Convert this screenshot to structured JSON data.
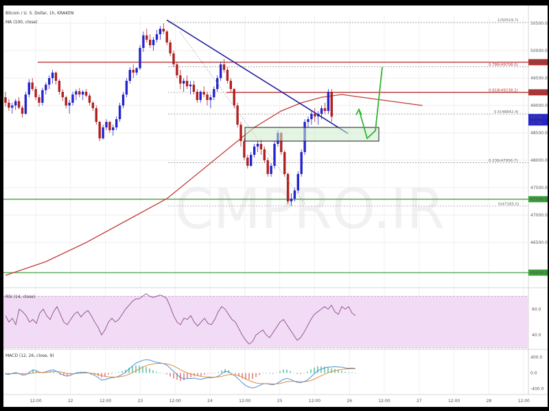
{
  "header": {
    "symbol_line": "Bitcoin / U. S. Dollar, 1h, KRAKEN",
    "ma_label": "MA (100, close)",
    "rsi_label": "RSI (14, close)",
    "macd_label": "MACD (12, 26, close, 9)"
  },
  "watermark": "CMPRO.IR",
  "colors": {
    "up": "#2424cc",
    "down": "#b02020",
    "ma": "#c43a3a",
    "trendline": "#1e1ea0",
    "resistance": "#b83232",
    "support": "#3aa03a",
    "arrow": "#2db52d",
    "rsi_band": "#f2dcf5",
    "rsi_line": "#8a4a8a",
    "macd_line": "#4a90d9",
    "signal_line": "#e08a3a"
  },
  "chart_data": [
    {
      "type": "candlestick",
      "title": "",
      "xlabel": "",
      "ylabel": "",
      "y_ticks": [
        "50500.0",
        "50000.0",
        "49500.0",
        "49000.0",
        "48500.0",
        "48000.0",
        "47500.0",
        "47000.0",
        "46500.0"
      ],
      "ylim": [
        45700,
        50650
      ],
      "x_ticks": [
        "12:00",
        "22",
        "12:00",
        "23",
        "12:00",
        "24",
        "12:00",
        "25",
        "12:00",
        "26",
        "12:00",
        "27",
        "12:00",
        "28",
        "12:00"
      ],
      "price_tags": [
        {
          "text": "49799.5",
          "y": 49790,
          "color": "#b83232"
        },
        {
          "text": "49244.8",
          "y": 49240,
          "color": "#b83232"
        },
        {
          "text": "48796.5",
          "y": 48790,
          "color": "#2424cc"
        },
        {
          "text": "25:56",
          "y": 48690,
          "color": "#2424cc"
        },
        {
          "text": "47299.1",
          "y": 47290,
          "color": "#3aa03a"
        },
        {
          "text": "45958.1",
          "y": 45950,
          "color": "#3aa03a"
        }
      ],
      "fib_levels": [
        {
          "label": "1(50519.7)",
          "y": 50519.7
        },
        {
          "label": "0.786(49708.0)",
          "y": 49708
        },
        {
          "label": "0.618(49238.2)",
          "y": 49238.2
        },
        {
          "label": "0.5(48842.4)",
          "y": 48842.4
        },
        {
          "label": "0.236(47956.7)",
          "y": 47956.7
        },
        {
          "label": "0(47165.0)",
          "y": 47165
        }
      ],
      "horizontal_levels": [
        {
          "name": "resistance-upper",
          "y": 49790,
          "color": "#b83232"
        },
        {
          "name": "resistance-lower",
          "y": 49240,
          "color": "#b83232"
        },
        {
          "name": "support-upper",
          "y": 47290,
          "color": "#3aa03a"
        },
        {
          "name": "support-lower",
          "y": 45950,
          "color": "#3aa03a"
        }
      ],
      "ohlc": [
        [
          49150,
          49250,
          48980,
          49050
        ],
        [
          49050,
          49120,
          48900,
          48960
        ],
        [
          48960,
          49050,
          48850,
          49000
        ],
        [
          49000,
          49120,
          48920,
          49080
        ],
        [
          49080,
          49150,
          48930,
          48960
        ],
        [
          48960,
          49000,
          48780,
          48850
        ],
        [
          48850,
          49250,
          48830,
          49200
        ],
        [
          49200,
          49480,
          49150,
          49420
        ],
        [
          49420,
          49500,
          49260,
          49300
        ],
        [
          49300,
          49350,
          49100,
          49150
        ],
        [
          49150,
          49200,
          48980,
          49050
        ],
        [
          49050,
          49320,
          49000,
          49280
        ],
        [
          49280,
          49420,
          49200,
          49380
        ],
        [
          49380,
          49550,
          49300,
          49500
        ],
        [
          49500,
          49650,
          49400,
          49600
        ],
        [
          49600,
          49620,
          49380,
          49450
        ],
        [
          49450,
          49480,
          49200,
          49250
        ],
        [
          49250,
          49300,
          49080,
          49150
        ],
        [
          49150,
          49180,
          48950,
          49000
        ],
        [
          49000,
          49100,
          48850,
          49050
        ],
        [
          49050,
          49250,
          49000,
          49200
        ],
        [
          49200,
          49300,
          49100,
          49260
        ],
        [
          49260,
          49320,
          49150,
          49200
        ],
        [
          49200,
          49280,
          49100,
          49250
        ],
        [
          49250,
          49300,
          49150,
          49180
        ],
        [
          49180,
          49220,
          49000,
          49050
        ],
        [
          49050,
          49080,
          48900,
          48950
        ],
        [
          48950,
          49000,
          48650,
          48700
        ],
        [
          48700,
          48720,
          48350,
          48400
        ],
        [
          48400,
          48650,
          48380,
          48600
        ],
        [
          48600,
          48750,
          48550,
          48700
        ],
        [
          48700,
          48720,
          48500,
          48550
        ],
        [
          48550,
          48650,
          48450,
          48600
        ],
        [
          48600,
          48800,
          48550,
          48750
        ],
        [
          48750,
          49050,
          48700,
          49000
        ],
        [
          49000,
          49250,
          48950,
          49200
        ],
        [
          49200,
          49500,
          49150,
          49450
        ],
        [
          49450,
          49700,
          49400,
          49650
        ],
        [
          49650,
          49750,
          49500,
          49600
        ],
        [
          49600,
          49700,
          49550,
          49680
        ],
        [
          49680,
          50100,
          49650,
          50050
        ],
        [
          50050,
          50350,
          49980,
          50280
        ],
        [
          50280,
          50400,
          50150,
          50200
        ],
        [
          50200,
          50300,
          50050,
          50100
        ],
        [
          50100,
          50250,
          50000,
          50200
        ],
        [
          50200,
          50380,
          50150,
          50300
        ],
        [
          50300,
          50450,
          50200,
          50400
        ],
        [
          50400,
          50500,
          50300,
          50350
        ],
        [
          50350,
          50380,
          50100,
          50150
        ],
        [
          50150,
          50200,
          49900,
          49950
        ],
        [
          49950,
          50000,
          49700,
          49750
        ],
        [
          49750,
          49800,
          49500,
          49550
        ],
        [
          49550,
          49650,
          49300,
          49400
        ],
        [
          49400,
          49500,
          49250,
          49450
        ],
        [
          49450,
          49550,
          49300,
          49350
        ],
        [
          49350,
          49450,
          49200,
          49380
        ],
        [
          49380,
          49450,
          49200,
          49250
        ],
        [
          49250,
          49300,
          49050,
          49100
        ],
        [
          49100,
          49280,
          49050,
          49250
        ],
        [
          49250,
          49350,
          49150,
          49200
        ],
        [
          49200,
          49250,
          49000,
          49100
        ],
        [
          49100,
          49200,
          48950,
          49150
        ],
        [
          49150,
          49350,
          49100,
          49300
        ],
        [
          49300,
          49550,
          49250,
          49500
        ],
        [
          49500,
          49800,
          49450,
          49750
        ],
        [
          49750,
          49850,
          49600,
          49650
        ],
        [
          49650,
          49700,
          49400,
          49450
        ],
        [
          49450,
          49500,
          49250,
          49300
        ],
        [
          49300,
          49320,
          48950,
          49000
        ],
        [
          49000,
          49050,
          48600,
          48650
        ],
        [
          48650,
          48700,
          48250,
          48350
        ],
        [
          48350,
          48400,
          48000,
          48050
        ],
        [
          48050,
          48100,
          47850,
          47900
        ],
        [
          47900,
          48150,
          47880,
          48100
        ],
        [
          48100,
          48300,
          48050,
          48250
        ],
        [
          48250,
          48350,
          48150,
          48300
        ],
        [
          48300,
          48380,
          48100,
          48200
        ],
        [
          48200,
          48250,
          47950,
          48000
        ],
        [
          48000,
          48050,
          47700,
          47750
        ],
        [
          47750,
          47950,
          47700,
          47900
        ],
        [
          47900,
          48350,
          47850,
          48300
        ],
        [
          48300,
          48550,
          48250,
          48500
        ],
        [
          48500,
          48520,
          48100,
          48150
        ],
        [
          48150,
          48180,
          47700,
          47750
        ],
        [
          47750,
          47780,
          47200,
          47250
        ],
        [
          47250,
          47400,
          47165,
          47300
        ],
        [
          47300,
          47500,
          47250,
          47450
        ],
        [
          47450,
          47800,
          47400,
          47750
        ],
        [
          47750,
          48200,
          47700,
          48150
        ],
        [
          48150,
          48750,
          48100,
          48700
        ],
        [
          48700,
          48800,
          48600,
          48750
        ],
        [
          48750,
          48900,
          48650,
          48850
        ],
        [
          48850,
          48950,
          48700,
          48800
        ],
        [
          48800,
          48900,
          48650,
          48850
        ],
        [
          48850,
          49000,
          48750,
          48950
        ],
        [
          48950,
          49050,
          48850,
          48900
        ],
        [
          48900,
          49300,
          48850,
          49250
        ],
        [
          49250,
          49300,
          48700,
          48796.5
        ]
      ],
      "ma100": [
        [
          0,
          45900
        ],
        [
          12,
          46150
        ],
        [
          24,
          46500
        ],
        [
          36,
          46900
        ],
        [
          48,
          47300
        ],
        [
          58,
          47800
        ],
        [
          66,
          48200
        ],
        [
          74,
          48600
        ],
        [
          82,
          48900
        ],
        [
          88,
          49050
        ],
        [
          94,
          49150
        ],
        [
          100,
          49200
        ],
        [
          106,
          49150
        ],
        [
          112,
          49100
        ],
        [
          118,
          49050
        ],
        [
          124,
          49000
        ]
      ]
    },
    {
      "type": "line",
      "name": "rsi",
      "title": "",
      "y_ticks": [
        "60.0",
        "40.0"
      ],
      "ylim": [
        30,
        75
      ],
      "band": [
        30,
        70
      ],
      "values": [
        55,
        50,
        53,
        48,
        60,
        58,
        55,
        50,
        52,
        49,
        57,
        60,
        55,
        52,
        58,
        62,
        56,
        50,
        48,
        52,
        56,
        58,
        54,
        57,
        59,
        55,
        50,
        46,
        40,
        44,
        50,
        53,
        50,
        52,
        56,
        60,
        63,
        66,
        68,
        68,
        70,
        72,
        70,
        69,
        70,
        71,
        70,
        68,
        62,
        55,
        50,
        48,
        53,
        52,
        55,
        50,
        47,
        50,
        53,
        49,
        48,
        52,
        58,
        62,
        60,
        56,
        52,
        50,
        45,
        40,
        36,
        33,
        35,
        40,
        42,
        44,
        40,
        38,
        42,
        46,
        50,
        52,
        48,
        44,
        40,
        36,
        38,
        42,
        47,
        52,
        56,
        58,
        60,
        62,
        60,
        63,
        58,
        56,
        62,
        60,
        62,
        57,
        55
      ]
    },
    {
      "type": "line",
      "name": "macd",
      "title": "",
      "y_ticks": [
        "400.0",
        "0.0",
        "-400.0"
      ],
      "ylim": [
        -550,
        550
      ],
      "macd": [
        -30,
        -40,
        -10,
        10,
        -20,
        -60,
        -40,
        20,
        80,
        60,
        20,
        10,
        40,
        70,
        80,
        40,
        -20,
        -60,
        -80,
        -60,
        -20,
        10,
        20,
        20,
        10,
        -30,
        -60,
        -120,
        -180,
        -170,
        -140,
        -120,
        -110,
        -80,
        -40,
        20,
        100,
        180,
        250,
        290,
        320,
        340,
        330,
        300,
        270,
        260,
        240,
        200,
        120,
        40,
        -40,
        -120,
        -150,
        -140,
        -140,
        -130,
        -150,
        -160,
        -140,
        -120,
        -120,
        -110,
        -80,
        -20,
        40,
        30,
        -30,
        -80,
        -160,
        -250,
        -320,
        -360,
        -380,
        -360,
        -320,
        -280,
        -270,
        -290,
        -300,
        -270,
        -220,
        -160,
        -140,
        -160,
        -200,
        -240,
        -250,
        -220,
        -180,
        -100,
        -20,
        60,
        100,
        130,
        150,
        150,
        160,
        150,
        150,
        130,
        120,
        125,
        115
      ],
      "signal": [
        -10,
        -15,
        -18,
        -15,
        -15,
        -22,
        -26,
        -18,
        -2,
        10,
        12,
        12,
        18,
        28,
        38,
        38,
        26,
        8,
        -10,
        -20,
        -20,
        -14,
        -8,
        -2,
        0,
        -6,
        -17,
        -37,
        -66,
        -87,
        -98,
        -102,
        -104,
        -99,
        -87,
        -66,
        -33,
        10,
        58,
        104,
        147,
        186,
        215,
        232,
        240,
        244,
        243,
        234,
        211,
        177,
        134,
        83,
        36,
        1,
        -27,
        -48,
        -68,
        -87,
        -98,
        -102,
        -106,
        -107,
        -102,
        -86,
        -61,
        -43,
        -40,
        -48,
        -70,
        -106,
        -149,
        -191,
        -229,
        -255,
        -268,
        -270,
        -270,
        -274,
        -279,
        -277,
        -266,
        -245,
        -224,
        -211,
        -209,
        -215,
        -222,
        -222,
        -214,
        -191,
        -157,
        -114,
        -71,
        -31,
        5,
        34,
        59,
        77,
        92,
        100,
        104,
        108,
        110
      ]
    }
  ]
}
